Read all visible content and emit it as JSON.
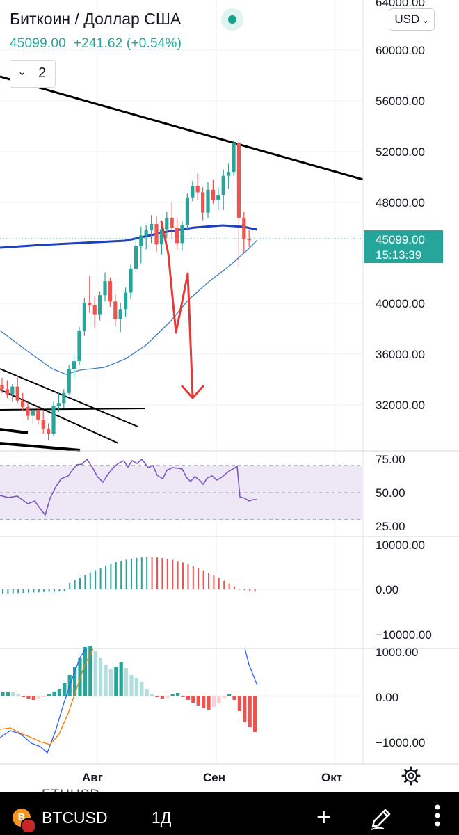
{
  "header": {
    "title": "Биткоин / Доллар США",
    "price": "45099.00",
    "change": "+241.62 (+0.54%)",
    "indicators_collapse_count": "2",
    "currency": "USD"
  },
  "price_label": {
    "value": "45099.00",
    "countdown": "15:13:39",
    "color": "#26a69a"
  },
  "price_axis": [
    "64000.00",
    "60000.00",
    "56000.00",
    "52000.00",
    "48000.00",
    "40000.00",
    "36000.00",
    "32000.00"
  ],
  "rsi_axis": [
    "75.00",
    "50.00",
    "25.00"
  ],
  "ao_axis": [
    "10000.00",
    "0.00",
    "−10000.00"
  ],
  "macd_axis": [
    "1000.00",
    "0.00",
    "−1000.00"
  ],
  "time_axis": [
    "Авг",
    "Сен",
    "Окт"
  ],
  "ghost_symbol": "ETHUSD",
  "bottom_bar": {
    "symbol": "BTCUSD",
    "timeframe": "1Д",
    "coin_badge": "B"
  },
  "colors": {
    "up": "#26a69a",
    "down": "#ef5350",
    "ma_slow": "#1e3fbf",
    "ma_fast": "#3d7fc9",
    "rsi": "#7e57c2",
    "rsi_band": "#ede7f6",
    "arrow": "#e53935"
  },
  "chart_data": {
    "type": "candlestick",
    "symbol": "BTCUSD",
    "timeframe": "1D",
    "last_price": 45099.0,
    "ylim": [
      28500,
      64000
    ],
    "x": [
      "Авг",
      "Сен",
      "Окт"
    ],
    "candles": [
      [
        33600,
        34200,
        33000,
        33300
      ],
      [
        33300,
        34000,
        32600,
        32900
      ],
      [
        32900,
        33700,
        32300,
        33500
      ],
      [
        33500,
        34400,
        32200,
        32400
      ],
      [
        32400,
        33000,
        31600,
        31900
      ],
      [
        31900,
        32300,
        30900,
        31200
      ],
      [
        31200,
        31900,
        30600,
        31600
      ],
      [
        31600,
        32000,
        30500,
        30900
      ],
      [
        30900,
        31600,
        29800,
        30200
      ],
      [
        30200,
        30600,
        29300,
        29800
      ],
      [
        29800,
        32300,
        29600,
        32000
      ],
      [
        32000,
        33000,
        31500,
        32200
      ],
      [
        32200,
        33300,
        31800,
        33000
      ],
      [
        33000,
        35200,
        32900,
        34900
      ],
      [
        34900,
        36000,
        34200,
        35500
      ],
      [
        35500,
        38200,
        35200,
        37900
      ],
      [
        37900,
        40500,
        37500,
        40100
      ],
      [
        40100,
        42200,
        39300,
        39900
      ],
      [
        39900,
        40600,
        38100,
        39200
      ],
      [
        39200,
        41000,
        38700,
        40700
      ],
      [
        40700,
        42500,
        40200,
        41800
      ],
      [
        41800,
        42100,
        39800,
        40200
      ],
      [
        40200,
        40800,
        38300,
        38800
      ],
      [
        38800,
        40100,
        37800,
        39600
      ],
      [
        39600,
        41300,
        39000,
        40900
      ],
      [
        40900,
        43100,
        40400,
        42800
      ],
      [
        42800,
        45000,
        42500,
        44600
      ],
      [
        44600,
        46100,
        43200,
        45400
      ],
      [
        45400,
        46200,
        44300,
        45800
      ],
      [
        45800,
        47000,
        44800,
        46300
      ],
      [
        46300,
        46900,
        44100,
        44700
      ],
      [
        44700,
        46300,
        43900,
        45900
      ],
      [
        45900,
        47300,
        45200,
        46800
      ],
      [
        46800,
        48000,
        45100,
        46000
      ],
      [
        46000,
        46800,
        44300,
        44800
      ],
      [
        44800,
        46500,
        44200,
        46200
      ],
      [
        46200,
        48700,
        45800,
        48400
      ],
      [
        48400,
        49700,
        48100,
        49300
      ],
      [
        49300,
        50300,
        48200,
        48800
      ],
      [
        48800,
        49200,
        46600,
        47200
      ],
      [
        47200,
        49600,
        46800,
        49000
      ],
      [
        49000,
        49800,
        47900,
        48200
      ],
      [
        48200,
        49200,
        47400,
        48600
      ],
      [
        48600,
        50600,
        47400,
        50100
      ],
      [
        50100,
        51100,
        49100,
        50400
      ],
      [
        50400,
        52900,
        50100,
        52700
      ],
      [
        52700,
        53000,
        42900,
        46800
      ],
      [
        46800,
        47300,
        44000,
        45100
      ],
      [
        45100,
        45800,
        44500,
        45099
      ]
    ],
    "indicators": [
      {
        "name": "RSI",
        "bands": [
          30,
          70
        ],
        "mid": 50
      },
      {
        "name": "AO",
        "zero": 0
      },
      {
        "name": "MACD",
        "zero": 0
      }
    ]
  }
}
